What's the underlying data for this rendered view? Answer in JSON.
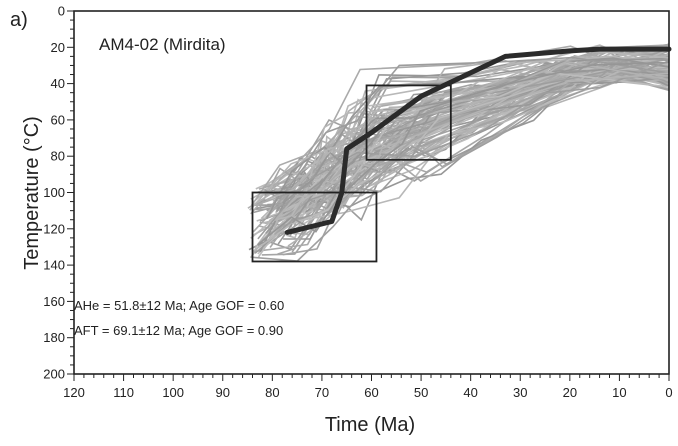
{
  "panel_label": "a)",
  "chart_data": {
    "type": "line",
    "title": "AM4-02 (Mirdita)",
    "xlabel": "Time (Ma)",
    "ylabel": "Temperature (°C)",
    "xlim": [
      120,
      0
    ],
    "ylim": [
      200,
      0
    ],
    "x_reversed": true,
    "y_reversed": true,
    "x_ticks": [
      120,
      110,
      100,
      90,
      80,
      70,
      60,
      50,
      40,
      30,
      20,
      10,
      0
    ],
    "y_ticks": [
      0,
      20,
      40,
      60,
      80,
      100,
      120,
      140,
      160,
      180,
      200
    ],
    "grid": false,
    "series": [
      {
        "role": "best-fit path",
        "color": "#2b2b2b",
        "x": [
          77,
          68,
          66,
          65,
          60,
          50,
          33,
          20,
          14,
          0
        ],
        "y": [
          122,
          116,
          100,
          76,
          67,
          47,
          25,
          22,
          21,
          21
        ]
      }
    ],
    "envelope": {
      "role": "accepted paths",
      "color": "#a3a3a3",
      "count": 110
    },
    "constraint_boxes": [
      {
        "x": [
          84,
          59
        ],
        "y": [
          100,
          138
        ]
      },
      {
        "x": [
          61,
          44
        ],
        "y": [
          41,
          82
        ]
      }
    ],
    "annotations": [
      "AHe = 51.8±12 Ma; Age GOF = 0.60",
      "AFT = 69.1±12 Ma; Age GOF = 0.90"
    ]
  }
}
